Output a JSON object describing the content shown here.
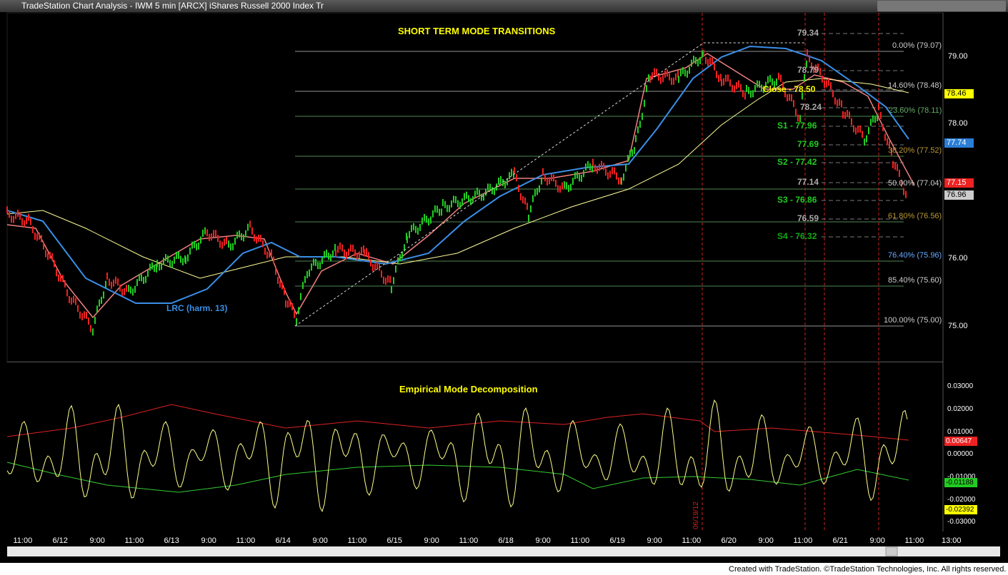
{
  "window": {
    "title": "TradeStation Chart Analysis - IWM 5 min [ARCX] iShares Russell 2000 Index Tr"
  },
  "main_panel": {
    "heading": "SHORT TERM MODE TRANSITIONS",
    "lrc_label": "LRC (harm. 13)",
    "price_ticks": [
      "79.00",
      "78.00",
      "76.00",
      "75.00"
    ],
    "price_flags": [
      "78.46",
      "77.74",
      "77.15",
      "76.96"
    ],
    "fib_levels": [
      "0.00% (79.07)",
      "14.60% (78.48)",
      "23.60% (78.11)",
      "38.20% (77.52)",
      "50.00% (77.04)",
      "61.80% (76.56)",
      "76.40% (75.96)",
      "85.40% (75.60)",
      "100.00% (75.00)"
    ],
    "pivots": [
      "79.34",
      "78.79",
      "Close - 78.50",
      "78.24",
      "S1 - 77.96",
      "77.69",
      "S2 - 77.42",
      "77.14",
      "S3 - 76.86",
      "76.59",
      "S4 - 76.32"
    ],
    "date_marker": "06/19/12"
  },
  "indicator_panel": {
    "heading": "Empirical Mode Decomposition",
    "ticks": [
      "0.03000",
      "0.02000",
      "0.01000",
      "0.00000",
      "-0.01000",
      "-0.02000",
      "-0.03000"
    ],
    "flags": [
      "0.00647",
      "-0.01188",
      "-0.02392"
    ]
  },
  "time_axis": [
    "11:00",
    "6/12",
    "9:00",
    "11:00",
    "6/13",
    "9:00",
    "11:00",
    "6/14",
    "9:00",
    "11:00",
    "6/15",
    "9:00",
    "11:00",
    "6/18",
    "9:00",
    "11:00",
    "6/19",
    "9:00",
    "11:00",
    "6/20",
    "9:00",
    "11:00",
    "6/21",
    "9:00",
    "11:00",
    "13:00"
  ],
  "footer": "Created with TradeStation. ©TradeStation Technologies, Inc. All rights reserved."
}
